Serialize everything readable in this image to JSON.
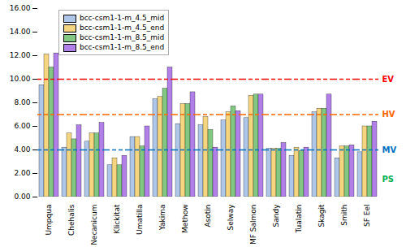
{
  "chart_data": {
    "type": "bar",
    "categories": [
      "Umpqua",
      "Chehalis",
      "Necanicum",
      "Klickitat",
      "Umatilla",
      "Yakima",
      "Methow",
      "Asotin",
      "Selway",
      "MF Salmon",
      "Sandy",
      "Tualatin",
      "Skagit",
      "Smith",
      "SF Eel"
    ],
    "series": [
      {
        "name": "bcc-csm1-1-m_4.5_mid",
        "color": "#aec6e8",
        "values": [
          9.5,
          4.2,
          4.7,
          2.7,
          5.1,
          8.3,
          6.2,
          6.1,
          6.5,
          6.7,
          4.1,
          3.5,
          7.2,
          3.3,
          3.8
        ]
      },
      {
        "name": "bcc-csm1-1-m_4.5_end",
        "color": "#f5d580",
        "values": [
          12.1,
          5.4,
          5.4,
          3.3,
          5.1,
          8.5,
          7.9,
          6.8,
          7.2,
          8.6,
          4.1,
          4.2,
          7.5,
          4.3,
          6.0
        ]
      },
      {
        "name": "bcc-csm1-1-m_8.5_mid",
        "color": "#82c882",
        "values": [
          11.0,
          4.9,
          5.4,
          2.7,
          4.3,
          9.2,
          7.9,
          5.7,
          7.7,
          8.7,
          4.1,
          3.9,
          7.5,
          4.3,
          6.0
        ]
      },
      {
        "name": "bcc-csm1-1-m_8.5_end",
        "color": "#b07fe8",
        "values": [
          12.2,
          6.1,
          6.3,
          3.5,
          6.0,
          11.0,
          8.9,
          4.2,
          7.3,
          8.7,
          4.6,
          4.2,
          8.7,
          4.4,
          6.4
        ]
      }
    ],
    "annotations": [
      {
        "text": "EV",
        "y": 10.0,
        "color": "#ff0000",
        "line_style": "dashed"
      },
      {
        "text": "HV",
        "y": 7.0,
        "color": "#ff6600",
        "line_style": "dashed"
      },
      {
        "text": "MV",
        "y": 4.0,
        "color": "#0070c0",
        "line_style": "dashed"
      },
      {
        "text": "PS",
        "y": 1.5,
        "color": "#00b050"
      }
    ],
    "ylim": [
      0,
      16
    ],
    "yticks": [
      {
        "value": 0,
        "label": "0.00"
      },
      {
        "value": 2,
        "label": "2.00"
      },
      {
        "value": 4,
        "label": "4.00"
      },
      {
        "value": 6,
        "label": "6.00"
      },
      {
        "value": 8,
        "label": "8.00"
      },
      {
        "value": 10,
        "label": "10.00"
      },
      {
        "value": 12,
        "label": "12.00"
      },
      {
        "value": 14,
        "label": "14.00"
      },
      {
        "value": 16,
        "label": "16.00"
      }
    ],
    "legend": "upper left",
    "grid": false
  }
}
